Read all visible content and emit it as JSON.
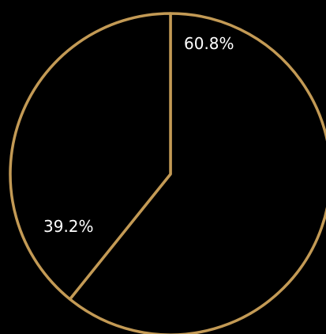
{
  "chart_data": {
    "type": "pie",
    "slices": [
      {
        "label": "60.8%",
        "value": 60.8
      },
      {
        "label": "39.2%",
        "value": 39.2
      }
    ],
    "start_angle": "top",
    "direction": "clockwise",
    "legend": "none"
  },
  "colors": {
    "background": "#000000",
    "slice_fill": "#000000",
    "stroke": "#c39a55",
    "label": "#ffffff"
  }
}
